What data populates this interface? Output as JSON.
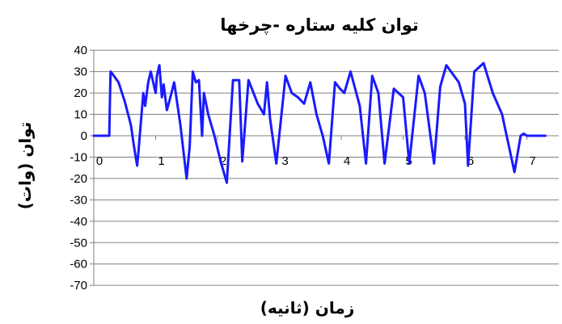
{
  "chart_data": {
    "type": "line",
    "title": "توان کلیه ستاره -چرخها",
    "xlabel": "زمان (ثانیه)",
    "ylabel": "توان (وات)",
    "xlim": [
      0,
      7.6
    ],
    "ylim": [
      -70,
      40
    ],
    "x_ticks": [
      0,
      1,
      2,
      3,
      4,
      5,
      6,
      7
    ],
    "y_ticks": [
      40,
      30,
      20,
      10,
      0,
      -10,
      -20,
      -30,
      -40,
      -50,
      -60,
      -70
    ],
    "grid": "horizontal",
    "line_color": "#1a1aff",
    "series": [
      {
        "x": [
          0,
          0.25,
          0.27,
          0.3,
          0.4,
          0.5,
          0.6,
          0.65,
          0.7,
          0.72,
          0.8,
          0.83,
          0.88,
          0.92,
          1.0,
          1.02,
          1.06,
          1.1,
          1.13,
          1.18,
          1.22,
          1.3,
          1.4,
          1.5,
          1.55,
          1.6,
          1.65,
          1.7,
          1.75,
          1.78,
          1.85,
          1.95,
          2.05,
          2.15,
          2.25,
          2.3,
          2.35,
          2.4,
          2.5,
          2.65,
          2.75,
          2.8,
          2.85,
          2.95,
          3.1,
          3.2,
          3.3,
          3.4,
          3.5,
          3.6,
          3.7,
          3.8,
          3.9,
          3.98,
          4.05,
          4.15,
          4.3,
          4.4,
          4.5,
          4.6,
          4.7,
          4.85,
          5.0,
          5.1,
          5.25,
          5.35,
          5.5,
          5.6,
          5.7,
          5.9,
          6.0,
          6.05,
          6.15,
          6.3,
          6.45,
          6.6,
          6.8,
          6.9,
          6.95,
          7.0,
          7.1,
          7.2,
          7.25,
          7.3
        ],
        "y": [
          0,
          0,
          30,
          29,
          25,
          16,
          5,
          -5,
          -14,
          -8,
          20,
          14,
          25,
          30,
          20,
          28,
          33,
          18,
          24,
          12,
          16,
          25,
          5,
          -20,
          -5,
          30,
          25,
          26,
          0,
          20,
          10,
          0,
          -12,
          -22,
          26,
          26,
          26,
          -12,
          26,
          15,
          10,
          25,
          8,
          -13,
          28,
          20,
          18,
          15,
          25,
          10,
          0,
          -13,
          25,
          22,
          20,
          30,
          14,
          -13,
          28,
          20,
          -13,
          22,
          18,
          -13,
          28,
          20,
          -13,
          23,
          33,
          25,
          15,
          -14,
          30,
          34,
          20,
          10,
          -17,
          0,
          1,
          0,
          0,
          0,
          0,
          0
        ]
      }
    ]
  }
}
